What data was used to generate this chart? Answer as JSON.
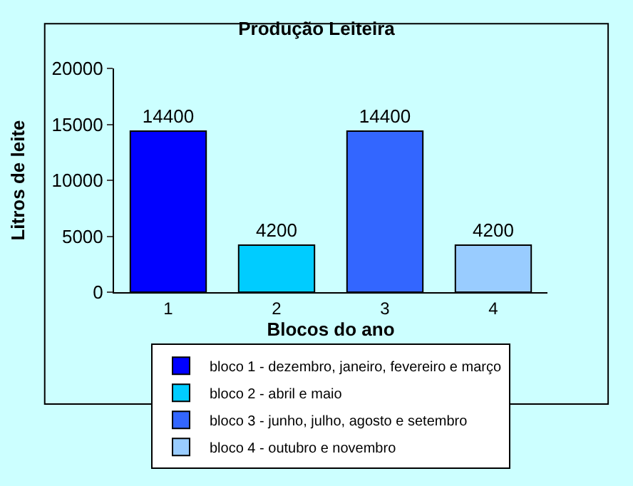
{
  "chart_data": {
    "type": "bar",
    "title": "Produção Leiteira",
    "xlabel": "Blocos do ano",
    "ylabel": "Litros de leite",
    "categories": [
      "1",
      "2",
      "3",
      "4"
    ],
    "series": [
      {
        "name": "bloco 1 - dezembro, janeiro, fevereiro e março",
        "color": "#0000ff",
        "values": [
          14400,
          null,
          null,
          null
        ]
      },
      {
        "name": "bloco 2 - abril e maio",
        "color": "#00ccff",
        "values": [
          null,
          4200,
          null,
          null
        ]
      },
      {
        "name": "bloco 3 - junho, julho, agosto e setembro",
        "color": "#3366ff",
        "values": [
          null,
          null,
          14400,
          null
        ]
      },
      {
        "name": "bloco 4 - outubro e novembro",
        "color": "#99ccff",
        "values": [
          null,
          null,
          null,
          4200
        ]
      }
    ],
    "ylim": [
      0,
      20000
    ],
    "yticks": [
      0,
      5000,
      10000,
      15000,
      20000
    ],
    "grid": false,
    "legend": "bottom",
    "data_labels": true
  }
}
